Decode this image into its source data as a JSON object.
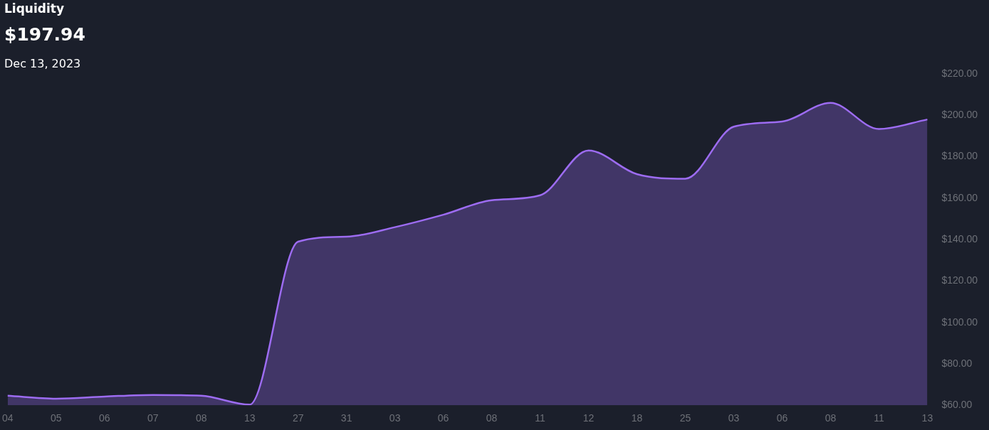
{
  "chart_data": {
    "type": "area",
    "title": "Liquidity",
    "subtitle": "$197.94",
    "annotations": [
      "Dec 13, 2023"
    ],
    "categories": [
      "04",
      "05",
      "06",
      "07",
      "08",
      "13",
      "27",
      "31",
      "03",
      "06",
      "08",
      "11",
      "12",
      "18",
      "25",
      "03",
      "06",
      "08",
      "11",
      "13"
    ],
    "series": [
      {
        "color": "#9d6cf2",
        "values": [
          64.6,
          63.2,
          64.2,
          65,
          64.6,
          60.3,
          139,
          141.4,
          146,
          152,
          159,
          161.4,
          183,
          171.6,
          169.4,
          194.5,
          197,
          206,
          193.4,
          198
        ]
      }
    ],
    "ylim": [
      60,
      220
    ],
    "yticks": [
      {
        "value": 60,
        "label": "$60.00"
      },
      {
        "value": 80,
        "label": "$80.00"
      },
      {
        "value": 100,
        "label": "$100.00"
      },
      {
        "value": 120,
        "label": "$120.00"
      },
      {
        "value": 140,
        "label": "$140.00"
      },
      {
        "value": 160,
        "label": "$160.00"
      },
      {
        "value": 180,
        "label": "$180.00"
      },
      {
        "value": 200,
        "label": "$200.00"
      },
      {
        "value": 220,
        "label": "$220.00"
      }
    ],
    "grid": false,
    "legend": false,
    "marker": "none",
    "line_style": "solid"
  }
}
